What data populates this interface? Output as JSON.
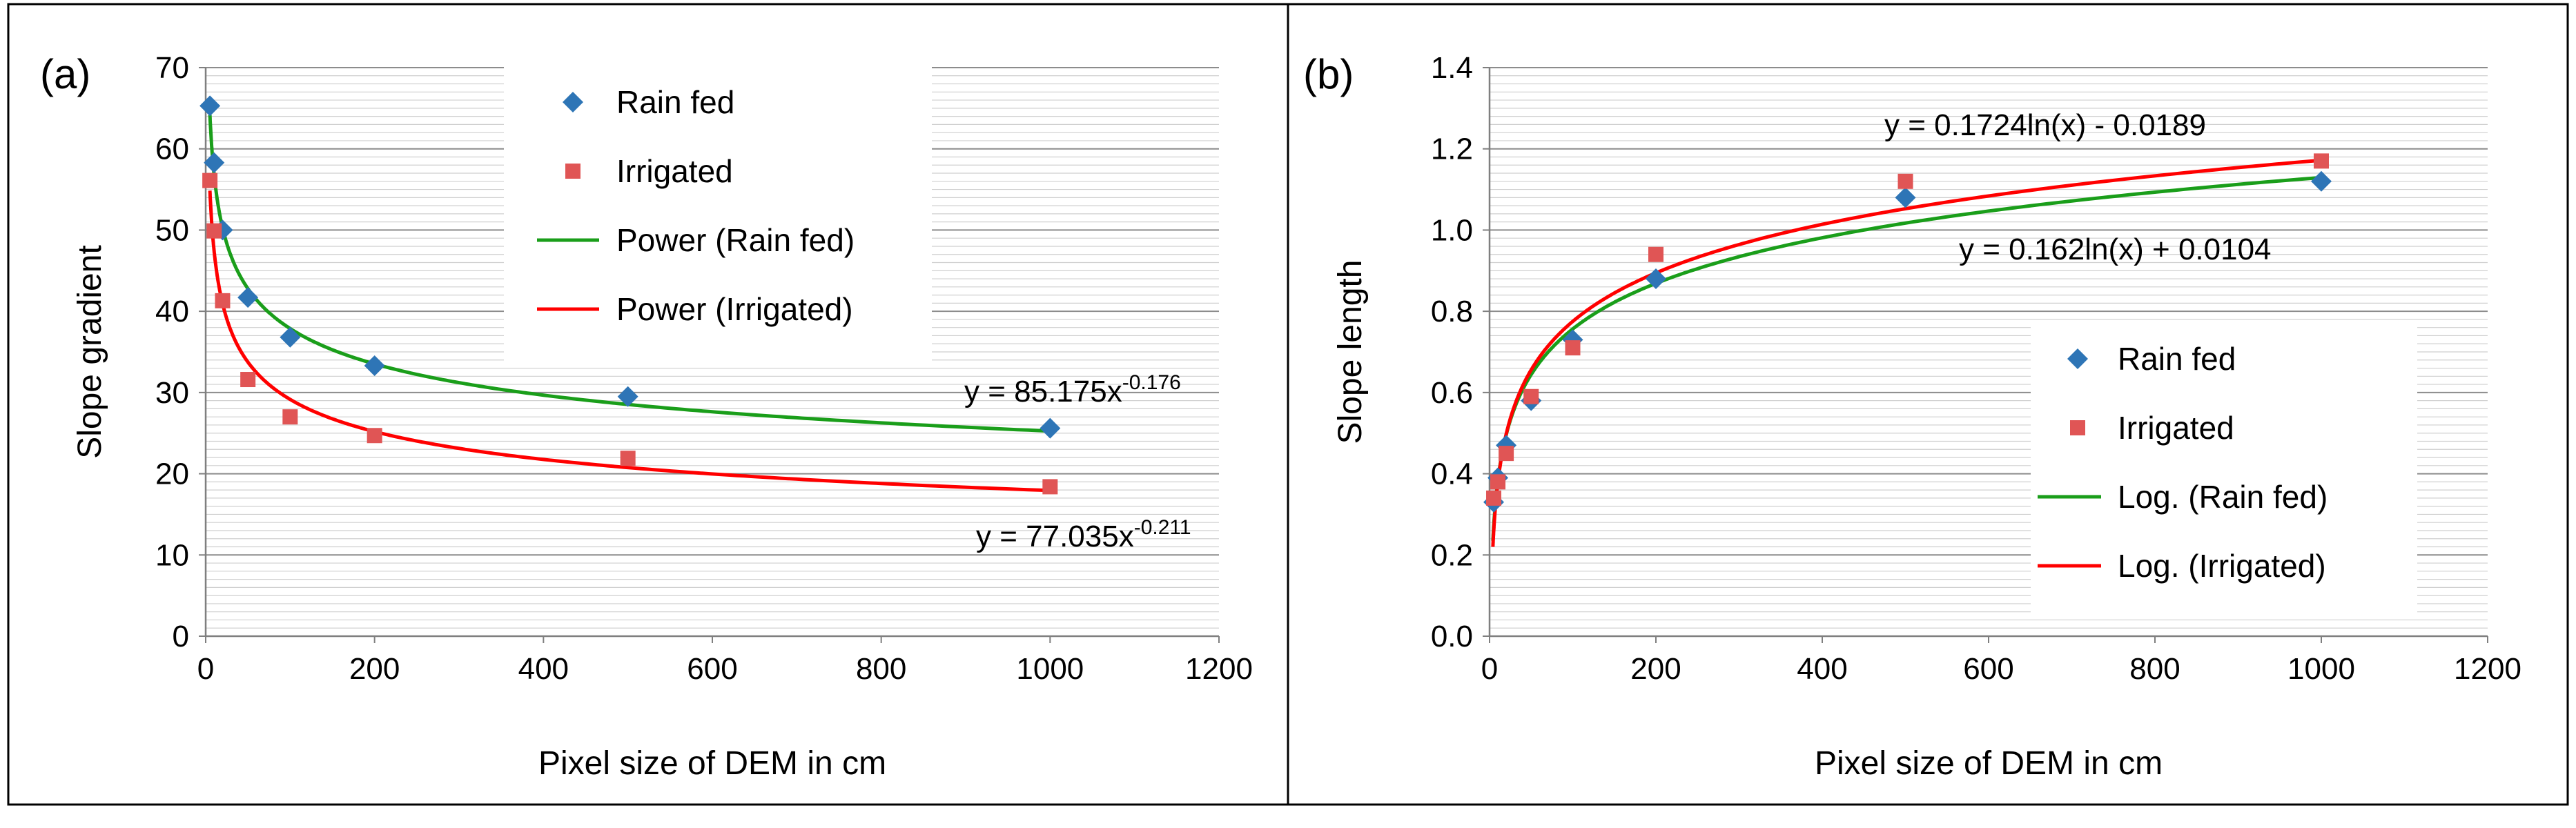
{
  "figure": {
    "border_color": "#000000"
  },
  "chart_data": [
    {
      "id": "a",
      "panel_label": "(a)",
      "type": "scatter",
      "xlabel": "Pixel size of DEM in cm",
      "ylabel": "Slope gradient",
      "xlim": [
        0,
        1200
      ],
      "ylim": [
        0,
        70
      ],
      "xticks": [
        0,
        200,
        400,
        600,
        800,
        1000,
        1200
      ],
      "yticks": [
        0,
        10,
        20,
        30,
        40,
        50,
        60,
        70
      ],
      "ytick_labels": [
        "0",
        "10",
        "20",
        "30",
        "40",
        "50",
        "60",
        "70"
      ],
      "grid": "horizontal",
      "series": [
        {
          "name": "Rain fed",
          "marker": "diamond",
          "color": "#2e75b6",
          "x": [
            5,
            10,
            20,
            50,
            100,
            200,
            500,
            1000
          ],
          "y": [
            65.3,
            58.3,
            50.0,
            41.7,
            36.8,
            33.3,
            29.5,
            25.6
          ]
        },
        {
          "name": "Irrigated",
          "marker": "square",
          "color": "#e05555",
          "x": [
            5,
            10,
            20,
            50,
            100,
            200,
            500,
            1000
          ],
          "y": [
            56.1,
            49.9,
            41.3,
            31.6,
            27.0,
            24.7,
            21.9,
            18.4
          ]
        }
      ],
      "trendlines": [
        {
          "name": "Power (Rain fed)",
          "type": "power",
          "coef": 85.175,
          "exp": -0.176,
          "color": "#1a9e1a",
          "x_range": [
            5,
            1000
          ]
        },
        {
          "name": "Power (Irrigated)",
          "type": "power",
          "coef": 77.035,
          "exp": -0.211,
          "color": "#ff0000",
          "x_range": [
            5,
            1000
          ]
        }
      ],
      "equations": [
        {
          "base": "y = 85.175x",
          "sup": "-0.176"
        },
        {
          "base": "y = 77.035x",
          "sup": "-0.211"
        }
      ],
      "legend_position": "top-center"
    },
    {
      "id": "b",
      "panel_label": "(b)",
      "type": "scatter",
      "xlabel": "Pixel size of DEM in cm",
      "ylabel": "Slope length",
      "xlim": [
        0,
        1200
      ],
      "ylim": [
        0,
        1.4
      ],
      "xticks": [
        0,
        200,
        400,
        600,
        800,
        1000,
        1200
      ],
      "yticks": [
        0,
        0.2,
        0.4,
        0.6,
        0.8,
        1.0,
        1.2,
        1.4
      ],
      "ytick_labels": [
        "0.0",
        "0.2",
        "0.4",
        "0.6",
        "0.8",
        "1.0",
        "1.2",
        "1.4"
      ],
      "grid": "horizontal",
      "series": [
        {
          "name": "Rain fed",
          "marker": "diamond",
          "color": "#2e75b6",
          "x": [
            5,
            10,
            20,
            50,
            100,
            200,
            500,
            1000
          ],
          "y": [
            0.33,
            0.39,
            0.47,
            0.58,
            0.73,
            0.88,
            1.08,
            1.12
          ]
        },
        {
          "name": "Irrigated",
          "marker": "square",
          "color": "#e05555",
          "x": [
            5,
            10,
            20,
            50,
            100,
            200,
            500,
            1000
          ],
          "y": [
            0.34,
            0.38,
            0.45,
            0.59,
            0.71,
            0.94,
            1.12,
            1.17
          ]
        }
      ],
      "trendlines": [
        {
          "name": "Log. (Rain fed)",
          "type": "log",
          "a": 0.162,
          "b": 0.0104,
          "color": "#1a9e1a",
          "x_range": [
            4,
            1000
          ]
        },
        {
          "name": "Log. (Irrigated)",
          "type": "log",
          "a": 0.1724,
          "b": -0.0189,
          "color": "#ff0000",
          "x_range": [
            4,
            1000
          ]
        }
      ],
      "equations": [
        {
          "base": "y = 0.1724ln(x) - 0.0189",
          "sup": ""
        },
        {
          "base": "y = 0.162ln(x) + 0.0104",
          "sup": ""
        }
      ],
      "legend_position": "bottom-right"
    }
  ]
}
